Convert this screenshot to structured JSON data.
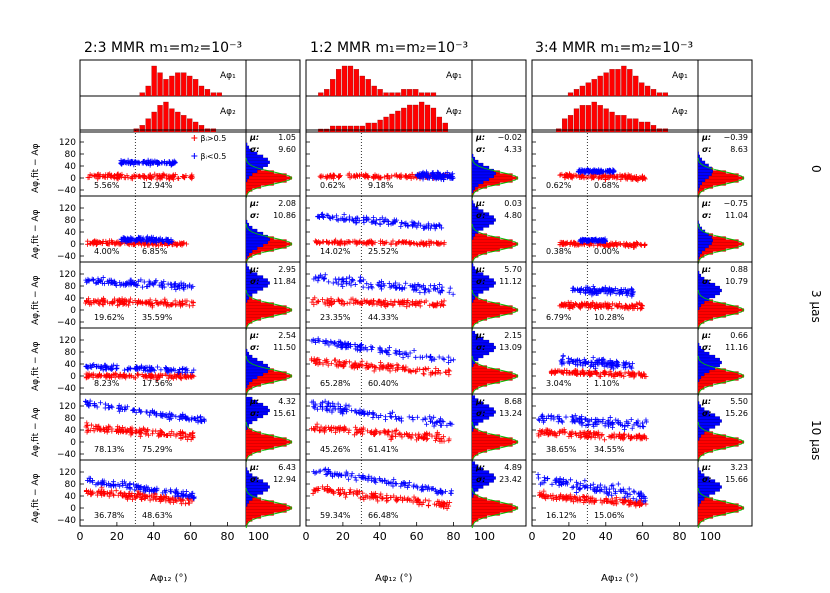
{
  "figure": {
    "columns": [
      {
        "title": "2:3 MMR m₁=m₂=10⁻³"
      },
      {
        "title": "1:2 MMR m₁=m₂=10⁻³"
      },
      {
        "title": "3:4 MMR m₁=m₂=10⁻³"
      }
    ],
    "ylabel": "Aφ,fit − Aφ",
    "xlabel": "Aφ₁₂ (°)",
    "right_labels": [
      "0",
      "3 μas",
      "10 μas"
    ],
    "legend": {
      "red": "βᵢ>0.5",
      "blue": "βᵢ<0.5"
    },
    "hist_labels": {
      "top": "Aφ₁",
      "bottom": "Aφ₂"
    },
    "stat_labels": {
      "mu": "μ:",
      "sigma": "σ:"
    },
    "colors": {
      "red": "#ff0000",
      "blue": "#0000ff",
      "green": "#00c000",
      "axis": "#000000"
    }
  },
  "chart_data": {
    "type": "scatter",
    "xlim": [
      0,
      90
    ],
    "ylim": [
      -60,
      160
    ],
    "x_ticks": [
      "0",
      "20",
      "40",
      "60",
      "80"
    ],
    "y_ticks": [
      "120",
      "80",
      "40",
      "0",
      "−40"
    ],
    "side_tick": "100",
    "vline_x": 30,
    "top_histograms": [
      {
        "column": 0,
        "phi1": [
          0,
          0,
          0,
          0,
          0,
          0,
          0,
          0,
          0,
          0,
          1,
          3,
          9,
          7,
          5,
          6,
          7,
          7,
          6,
          5,
          3,
          2,
          1,
          1,
          0,
          0,
          0,
          0
        ],
        "phi2": [
          0,
          0,
          0,
          0,
          0,
          0,
          0,
          0,
          0,
          1,
          2,
          4,
          6,
          8,
          9,
          7,
          6,
          5,
          4,
          3,
          2,
          1,
          1,
          0,
          0,
          0,
          0,
          0
        ]
      },
      {
        "column": 1,
        "phi1": [
          0,
          0,
          1,
          2,
          5,
          8,
          9,
          9,
          8,
          6,
          5,
          3,
          2,
          1,
          1,
          1,
          2,
          2,
          2,
          1,
          1,
          1,
          0,
          0,
          0,
          0,
          0,
          0
        ],
        "phi2": [
          0,
          0,
          1,
          1,
          2,
          2,
          2,
          2,
          2,
          2,
          3,
          3,
          4,
          5,
          6,
          7,
          8,
          9,
          9,
          10,
          9,
          8,
          5,
          3,
          0,
          0,
          0,
          0
        ]
      },
      {
        "column": 2,
        "phi1": [
          0,
          0,
          0,
          0,
          0,
          0,
          1,
          2,
          3,
          4,
          5,
          6,
          7,
          8,
          8,
          9,
          8,
          6,
          4,
          3,
          2,
          1,
          1,
          0,
          0,
          0,
          0,
          0
        ],
        "phi2": [
          0,
          0,
          0,
          0,
          1,
          4,
          5,
          7,
          8,
          8,
          9,
          8,
          7,
          6,
          5,
          5,
          4,
          4,
          3,
          3,
          2,
          1,
          1,
          0,
          0,
          0,
          0,
          0
        ]
      }
    ],
    "panels": [
      [
        {
          "pct": [
            "5.56%",
            "12.94%"
          ],
          "mu": "1.05",
          "sigma": "9.60",
          "red": {
            "xmin": 4,
            "xmax": 62,
            "y": 5,
            "slope": -0.05,
            "spread": 12
          },
          "blue": {
            "xmin": 22,
            "xmax": 52,
            "y": 52,
            "slope": -0.1,
            "spread": 10
          }
        },
        {
          "pct": [
            "0.62%",
            "9.18%"
          ],
          "mu": "−0.02",
          "sigma": "4.33",
          "red": {
            "xmin": 5,
            "xmax": 78,
            "y": 6,
            "slope": 0.0,
            "spread": 10
          },
          "blue": {
            "xmin": 60,
            "xmax": 80,
            "y": 15,
            "slope": -0.2,
            "spread": 16
          }
        },
        {
          "pct": [
            "0.62%",
            "0.68%"
          ],
          "mu": "−0.39",
          "sigma": "8.63",
          "red": {
            "xmin": 15,
            "xmax": 62,
            "y": 5,
            "slope": -0.15,
            "spread": 12
          },
          "blue": {
            "xmin": 25,
            "xmax": 45,
            "y": 22,
            "slope": 0.0,
            "spread": 8
          }
        }
      ],
      [
        {
          "pct": [
            "4.00%",
            "6.85%"
          ],
          "mu": "2.08",
          "sigma": "10.86",
          "red": {
            "xmin": 4,
            "xmax": 58,
            "y": 2,
            "slope": -0.1,
            "spread": 10
          },
          "blue": {
            "xmin": 22,
            "xmax": 50,
            "y": 15,
            "slope": -0.2,
            "spread": 12
          }
        },
        {
          "pct": [
            "14.02%",
            "25.52%"
          ],
          "mu": "0.03",
          "sigma": "4.80",
          "red": {
            "xmin": 5,
            "xmax": 75,
            "y": 5,
            "slope": -0.05,
            "spread": 10
          },
          "blue": {
            "xmin": 5,
            "xmax": 75,
            "y": 80,
            "slope": -0.55,
            "spread": 18
          }
        },
        {
          "pct": [
            "0.38%",
            "0.00%"
          ],
          "mu": "−0.75",
          "sigma": "11.04",
          "red": {
            "xmin": 15,
            "xmax": 62,
            "y": 0,
            "slope": -0.1,
            "spread": 10
          },
          "blue": {
            "xmin": 26,
            "xmax": 40,
            "y": 12,
            "slope": 0.0,
            "spread": 6
          }
        }
      ],
      [
        {
          "pct": [
            "19.62%",
            "35.59%"
          ],
          "mu": "2.95",
          "sigma": "11.84",
          "red": {
            "xmin": 3,
            "xmax": 62,
            "y": 25,
            "slope": -0.1,
            "spread": 16
          },
          "blue": {
            "xmin": 3,
            "xmax": 62,
            "y": 90,
            "slope": -0.4,
            "spread": 18
          }
        },
        {
          "pct": [
            "23.35%",
            "44.33%"
          ],
          "mu": "5.70",
          "sigma": "11.12",
          "red": {
            "xmin": 3,
            "xmax": 75,
            "y": 25,
            "slope": -0.1,
            "spread": 16
          },
          "blue": {
            "xmin": 3,
            "xmax": 80,
            "y": 90,
            "slope": -0.55,
            "spread": 22
          }
        },
        {
          "pct": [
            "6.79%",
            "10.28%"
          ],
          "mu": "0.88",
          "sigma": "10.79",
          "red": {
            "xmin": 15,
            "xmax": 60,
            "y": 15,
            "slope": -0.1,
            "spread": 14
          },
          "blue": {
            "xmin": 22,
            "xmax": 55,
            "y": 65,
            "slope": -0.2,
            "spread": 20
          }
        }
      ],
      [
        {
          "pct": [
            "8.23%",
            "17.56%"
          ],
          "mu": "2.54",
          "sigma": "11.50",
          "red": {
            "xmin": 3,
            "xmax": 62,
            "y": 0,
            "slope": -0.05,
            "spread": 12
          },
          "blue": {
            "xmin": 3,
            "xmax": 62,
            "y": 25,
            "slope": -0.2,
            "spread": 14
          }
        },
        {
          "pct": [
            "65.28%",
            "60.40%"
          ],
          "mu": "2.15",
          "sigma": "13.09",
          "red": {
            "xmin": 3,
            "xmax": 78,
            "y": 35,
            "slope": -0.5,
            "spread": 18
          },
          "blue": {
            "xmin": 3,
            "xmax": 80,
            "y": 95,
            "slope": -0.9,
            "spread": 18
          }
        },
        {
          "pct": [
            "3.04%",
            "1.10%"
          ],
          "mu": "0.66",
          "sigma": "11.16",
          "red": {
            "xmin": 10,
            "xmax": 62,
            "y": 10,
            "slope": -0.2,
            "spread": 12
          },
          "blue": {
            "xmin": 15,
            "xmax": 55,
            "y": 45,
            "slope": -0.3,
            "spread": 22
          }
        }
      ],
      [
        {
          "pct": [
            "78.13%",
            "75.29%"
          ],
          "mu": "4.32",
          "sigma": "15.61",
          "red": {
            "xmin": 3,
            "xmax": 62,
            "y": 35,
            "slope": -0.5,
            "spread": 18
          },
          "blue": {
            "xmin": 3,
            "xmax": 68,
            "y": 105,
            "slope": -0.9,
            "spread": 14
          }
        },
        {
          "pct": [
            "45.26%",
            "61.41%"
          ],
          "mu": "8.68",
          "sigma": "13.24",
          "red": {
            "xmin": 3,
            "xmax": 78,
            "y": 35,
            "slope": -0.5,
            "spread": 20
          },
          "blue": {
            "xmin": 3,
            "xmax": 80,
            "y": 100,
            "slope": -0.9,
            "spread": 22
          }
        },
        {
          "pct": [
            "38.65%",
            "34.55%"
          ],
          "mu": "5.50",
          "sigma": "15.26",
          "red": {
            "xmin": 3,
            "xmax": 62,
            "y": 25,
            "slope": -0.3,
            "spread": 18
          },
          "blue": {
            "xmin": 3,
            "xmax": 62,
            "y": 70,
            "slope": -0.4,
            "spread": 28
          }
        }
      ],
      [
        {
          "pct": [
            "36.78%",
            "48.63%"
          ],
          "mu": "6.43",
          "sigma": "12.94",
          "red": {
            "xmin": 3,
            "xmax": 62,
            "y": 40,
            "slope": -0.55,
            "spread": 18
          },
          "blue": {
            "xmin": 3,
            "xmax": 62,
            "y": 70,
            "slope": -0.9,
            "spread": 16
          }
        },
        {
          "pct": [
            "59.34%",
            "66.48%"
          ],
          "mu": "4.89",
          "sigma": "23.42",
          "red": {
            "xmin": 3,
            "xmax": 78,
            "y": 45,
            "slope": -0.7,
            "spread": 20
          },
          "blue": {
            "xmin": 3,
            "xmax": 80,
            "y": 100,
            "slope": -1.0,
            "spread": 16
          }
        },
        {
          "pct": [
            "16.12%",
            "15.06%"
          ],
          "mu": "3.23",
          "sigma": "15.66",
          "red": {
            "xmin": 3,
            "xmax": 62,
            "y": 30,
            "slope": -0.5,
            "spread": 16
          },
          "blue": {
            "xmin": 3,
            "xmax": 62,
            "y": 70,
            "slope": -1.0,
            "spread": 30
          }
        }
      ]
    ]
  }
}
